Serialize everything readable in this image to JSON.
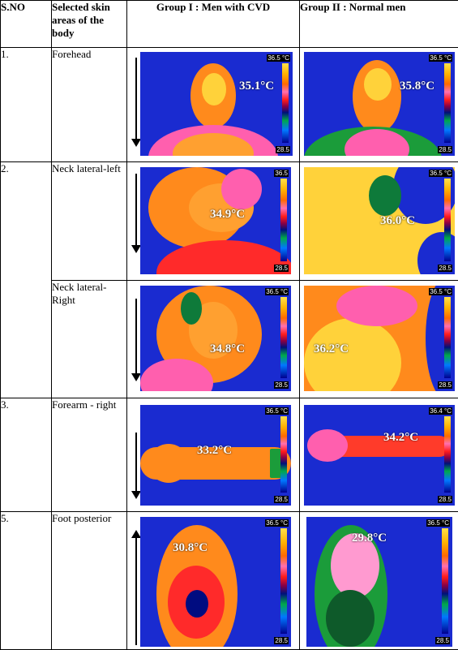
{
  "header": {
    "sno": "S.NO",
    "area": "Selected skin areas of the body",
    "group1": "Group I : Men with CVD",
    "group2": "Group II : Normal men"
  },
  "rows": [
    {
      "sno": "1.",
      "area": "Forehead",
      "g1_temp": "35.1°C",
      "g2_temp": "35.8°C",
      "g1_top": "36.5 °C",
      "g1_bot": "28.5",
      "g2_top": "36.5 °C",
      "g2_bot": "28.5"
    },
    {
      "sno": "2.",
      "area": "Neck lateral-left",
      "g1_temp": "34.9°C",
      "g2_temp": "36.0°C",
      "g1_top": "36.5",
      "g1_bot": "28.5",
      "g2_top": "36.5 °C",
      "g2_bot": "28.5"
    },
    {
      "sno": "",
      "area": "Neck lateral-Right",
      "g1_temp": "34.8°C",
      "g2_temp": "36.2°C",
      "g1_top": "36.5 °C",
      "g1_bot": "28.5",
      "g2_top": "36.5 °C",
      "g2_bot": "28.5"
    },
    {
      "sno": "3.",
      "area": "Forearm - right",
      "g1_temp": "33.2°C",
      "g2_temp": "34.2°C",
      "g1_top": "36.5 °C",
      "g1_bot": "28.5",
      "g2_top": "36.4 °C",
      "g2_bot": "28.5"
    },
    {
      "sno": "5.",
      "area": "Foot posterior",
      "g1_temp": "30.8°C",
      "g2_temp": "29.8°C",
      "g1_top": "36.5 °C",
      "g1_bot": "28.5",
      "g2_top": "36.5 °C",
      "g2_bot": "28.5"
    }
  ]
}
